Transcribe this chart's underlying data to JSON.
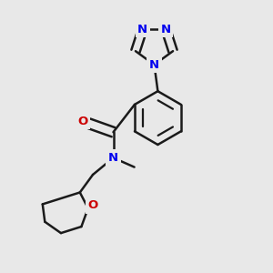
{
  "bg_color": "#e8e8e8",
  "bond_color": "#1a1a1a",
  "bond_lw": 1.8,
  "dbl_off": 0.016,
  "N_color": "#0000EE",
  "O_color": "#CC0000",
  "fs": 9.5,
  "fig_w": 3.0,
  "fig_h": 3.0,
  "dpi": 100,
  "xlim": [
    0,
    1
  ],
  "ylim": [
    0,
    1
  ]
}
